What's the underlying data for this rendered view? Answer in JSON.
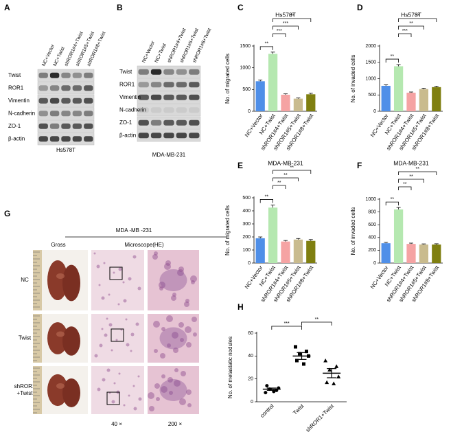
{
  "panel_labels": [
    "A",
    "B",
    "C",
    "D",
    "E",
    "F",
    "G",
    "H"
  ],
  "blots": [
    {
      "columns": [
        "NC+Vector",
        "NC+Twist",
        "shROR1#4+Twist",
        "shROR1#5+Twist",
        "shROR1#8+Twist"
      ],
      "rows": [
        "Twist",
        "ROR1",
        "Vimentin",
        "N-cadherin",
        "ZO-1",
        "β-actin"
      ],
      "cell_line": "Hs578T"
    },
    {
      "columns": [
        "NC+Vector",
        "NC+Twist",
        "shROR1#4+Twist",
        "shROR1#5+Twist",
        "shROR1#8+Twist"
      ],
      "rows": [
        "Twist",
        "ROR1",
        "Vimentin",
        "N-cadherin",
        "ZO-1",
        "β-actin"
      ],
      "cell_line": "MDA-MB-231"
    }
  ],
  "histology": {
    "title": "MDA -MB -231",
    "columns": [
      "Gross",
      "Microscope(HE)"
    ],
    "rows": [
      [
        "NC"
      ],
      [
        "Twist"
      ],
      [
        "shROR1",
        "+Twist"
      ]
    ],
    "magnifications": [
      "40 ×",
      "200 ×"
    ]
  },
  "chart_data": [
    {
      "type": "bar",
      "title": "Hs578T",
      "y_label": "No. of migrated cells",
      "categories": [
        "NC+Vector",
        "NC+Twist",
        "shROR1#4+Twist",
        "shROR1#5+Twist",
        "shROR1#8+Twist"
      ],
      "values": [
        690,
        1320,
        380,
        290,
        390
      ],
      "errors": [
        30,
        40,
        20,
        15,
        25
      ],
      "colors": [
        "#4f8fe8",
        "#b5e8b0",
        "#f5a3a3",
        "#c9bb8e",
        "#7f7f10"
      ],
      "ylim": [
        0,
        1500
      ],
      "yticks": [
        0,
        500,
        1000,
        1500
      ],
      "significance": [
        {
          "from": "NC+Vector",
          "to": "NC+Twist",
          "label": "**"
        },
        {
          "from": "NC+Twist",
          "to": "shROR1#4+Twist",
          "label": "***"
        },
        {
          "from": "NC+Twist",
          "to": "shROR1#5+Twist",
          "label": "***"
        },
        {
          "from": "NC+Twist",
          "to": "shROR1#8+Twist",
          "label": "***"
        }
      ]
    },
    {
      "type": "bar",
      "title": "Hs578T",
      "y_label": "No. of invaded cells",
      "categories": [
        "NC+Vector",
        "NC+Twist",
        "shROR1#4+Twist",
        "shROR1#5+Twist",
        "shROR1#8+Twist"
      ],
      "values": [
        780,
        1380,
        570,
        680,
        740
      ],
      "errors": [
        30,
        50,
        20,
        25,
        30
      ],
      "colors": [
        "#4f8fe8",
        "#b5e8b0",
        "#f5a3a3",
        "#c9bb8e",
        "#7f7f10"
      ],
      "ylim": [
        0,
        2000
      ],
      "yticks": [
        0,
        500,
        1000,
        1500,
        2000
      ],
      "significance": [
        {
          "from": "NC+Vector",
          "to": "NC+Twist",
          "label": "**"
        },
        {
          "from": "NC+Twist",
          "to": "shROR1#4+Twist",
          "label": "***"
        },
        {
          "from": "NC+Twist",
          "to": "shROR1#5+Twist",
          "label": "**"
        },
        {
          "from": "NC+Twist",
          "to": "shROR1#8+Twist",
          "label": "**"
        }
      ]
    },
    {
      "type": "bar",
      "title": "MDA-MB-231",
      "y_label": "No. of migrated cells",
      "categories": [
        "NC+Vector",
        "NC+Twist",
        "shROR1#4+Twist",
        "shROR1#5+Twist",
        "shROR1#8+Twist"
      ],
      "values": [
        190,
        425,
        165,
        180,
        170
      ],
      "errors": [
        10,
        20,
        8,
        8,
        10
      ],
      "colors": [
        "#4f8fe8",
        "#b5e8b0",
        "#f5a3a3",
        "#c9bb8e",
        "#7f7f10"
      ],
      "ylim": [
        0,
        500
      ],
      "yticks": [
        0,
        100,
        200,
        300,
        400,
        500
      ],
      "significance": [
        {
          "from": "NC+Vector",
          "to": "NC+Twist",
          "label": "**"
        },
        {
          "from": "NC+Twist",
          "to": "shROR1#4+Twist",
          "label": "**"
        },
        {
          "from": "NC+Twist",
          "to": "shROR1#5+Twist",
          "label": "**"
        },
        {
          "from": "NC+Twist",
          "to": "shROR1#8+Twist",
          "label": "**"
        }
      ]
    },
    {
      "type": "bar",
      "title": "MDA-MB-231",
      "y_label": "No. of invaded cells",
      "categories": [
        "NC+Vector",
        "NC+Twist",
        "shROR1#4+Twist",
        "shROR1#5+Twist",
        "shROR1#8+Twist"
      ],
      "values": [
        310,
        840,
        300,
        290,
        290
      ],
      "errors": [
        15,
        30,
        12,
        10,
        12
      ],
      "colors": [
        "#4f8fe8",
        "#b5e8b0",
        "#f5a3a3",
        "#c9bb8e",
        "#7f7f10"
      ],
      "ylim": [
        0,
        1000
      ],
      "yticks": [
        0,
        200,
        400,
        600,
        800,
        1000
      ],
      "significance": [
        {
          "from": "NC+Vector",
          "to": "NC+Twist",
          "label": "**"
        },
        {
          "from": "NC+Twist",
          "to": "shROR1#4+Twist",
          "label": "**"
        },
        {
          "from": "NC+Twist",
          "to": "shROR1#5+Twist",
          "label": "**"
        },
        {
          "from": "NC+Twist",
          "to": "shROR1#8+Twist",
          "label": "**"
        }
      ]
    },
    {
      "type": "dot",
      "y_label": "No. of metastatic nodules",
      "categories": [
        "control",
        "Twist",
        "shROR1+Twist"
      ],
      "points": [
        [
          8,
          10,
          11,
          12,
          14,
          9
        ],
        [
          48,
          44,
          42,
          40,
          36,
          33
        ],
        [
          36,
          31,
          28,
          22,
          17,
          16
        ]
      ],
      "means": [
        11,
        40,
        25
      ],
      "sem": [
        1,
        3,
        4
      ],
      "markers": [
        "circle",
        "square",
        "triangle"
      ],
      "ylim": [
        0,
        60
      ],
      "yticks": [
        0,
        20,
        40,
        60
      ],
      "significance": [
        {
          "from": "control",
          "to": "Twist",
          "label": "***"
        },
        {
          "from": "Twist",
          "to": "shROR1+Twist",
          "label": "**"
        }
      ]
    }
  ]
}
